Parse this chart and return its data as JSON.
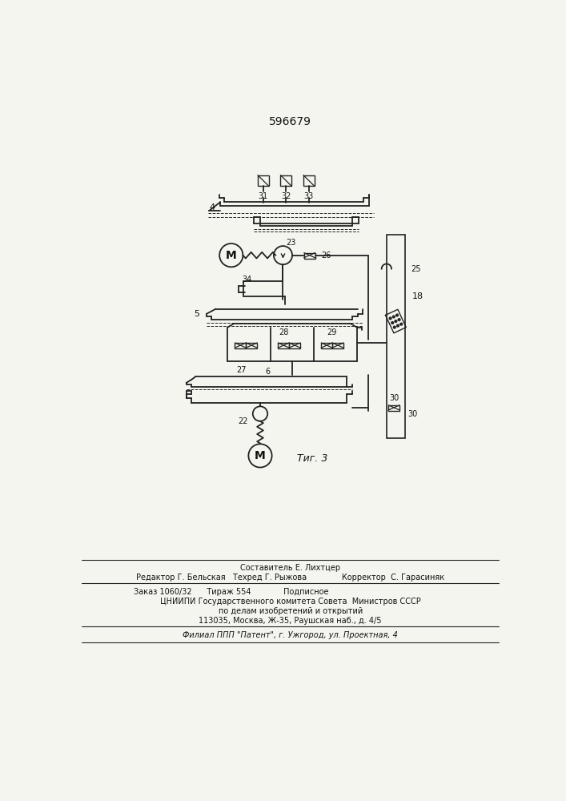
{
  "title": "596679",
  "bg_color": "#f5f5f0",
  "line_color": "#222222",
  "text_color": "#111111",
  "footer_lines": [
    "Составитель Е. Лихтцер",
    "Редактор Г. Бельская   Техред Г. Рыжова              Корректор  С. Гарасиняк",
    "Заказ 1060/32      Тираж 554             Подписное",
    "ЦНИИПИ Государственного комитета Совета  Министров СССР",
    "по делам изобретений и открытий",
    "113035, Москва, Ж-35, Раушская наб., д. 4/5",
    "Филиал ППП \"Патент\", г. Ужгород, ул. Проектная, 4"
  ]
}
